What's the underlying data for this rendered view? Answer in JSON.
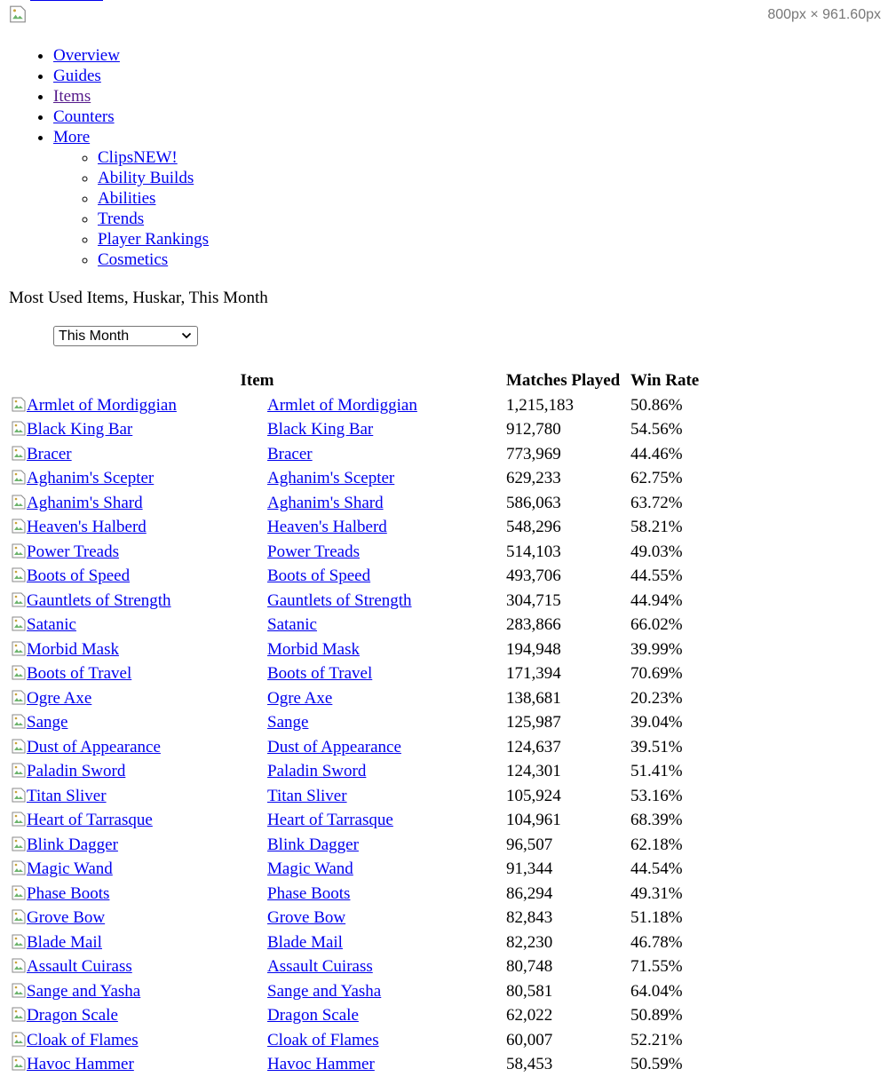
{
  "viewport_dims": "800px × 961.60px",
  "nav": {
    "items": [
      {
        "label": "Overview"
      },
      {
        "label": "Guides"
      },
      {
        "label": "Items"
      },
      {
        "label": "Counters"
      },
      {
        "label": "More"
      }
    ],
    "more_items": [
      {
        "label": "ClipsNEW!"
      },
      {
        "label": "Ability Builds"
      },
      {
        "label": "Abilities"
      },
      {
        "label": "Trends"
      },
      {
        "label": "Player Rankings"
      },
      {
        "label": "Cosmetics"
      }
    ]
  },
  "heading": "Most Used Items, Huskar, This Month",
  "period_select": {
    "value": "This Month"
  },
  "table": {
    "headers": {
      "item": "Item",
      "matches": "Matches Played",
      "winrate": "Win Rate"
    },
    "rows": [
      {
        "name": "Armlet of Mordiggian",
        "matches": "1,215,183",
        "winrate": "50.86%"
      },
      {
        "name": "Black King Bar",
        "matches": "912,780",
        "winrate": "54.56%"
      },
      {
        "name": "Bracer",
        "matches": "773,969",
        "winrate": "44.46%"
      },
      {
        "name": "Aghanim's Scepter",
        "matches": "629,233",
        "winrate": "62.75%"
      },
      {
        "name": "Aghanim's Shard",
        "matches": "586,063",
        "winrate": "63.72%"
      },
      {
        "name": "Heaven's Halberd",
        "matches": "548,296",
        "winrate": "58.21%"
      },
      {
        "name": "Power Treads",
        "matches": "514,103",
        "winrate": "49.03%"
      },
      {
        "name": "Boots of Speed",
        "matches": "493,706",
        "winrate": "44.55%"
      },
      {
        "name": "Gauntlets of Strength",
        "matches": "304,715",
        "winrate": "44.94%"
      },
      {
        "name": "Satanic",
        "matches": "283,866",
        "winrate": "66.02%"
      },
      {
        "name": "Morbid Mask",
        "matches": "194,948",
        "winrate": "39.99%"
      },
      {
        "name": "Boots of Travel",
        "matches": "171,394",
        "winrate": "70.69%"
      },
      {
        "name": "Ogre Axe",
        "matches": "138,681",
        "winrate": "20.23%"
      },
      {
        "name": "Sange",
        "matches": "125,987",
        "winrate": "39.04%"
      },
      {
        "name": "Dust of Appearance",
        "matches": "124,637",
        "winrate": "39.51%"
      },
      {
        "name": "Paladin Sword",
        "matches": "124,301",
        "winrate": "51.41%"
      },
      {
        "name": "Titan Sliver",
        "matches": "105,924",
        "winrate": "53.16%"
      },
      {
        "name": "Heart of Tarrasque",
        "matches": "104,961",
        "winrate": "68.39%"
      },
      {
        "name": "Blink Dagger",
        "matches": "96,507",
        "winrate": "62.18%"
      },
      {
        "name": "Magic Wand",
        "matches": "91,344",
        "winrate": "44.54%"
      },
      {
        "name": "Phase Boots",
        "matches": "86,294",
        "winrate": "49.31%"
      },
      {
        "name": "Grove Bow",
        "matches": "82,843",
        "winrate": "51.18%"
      },
      {
        "name": "Blade Mail",
        "matches": "82,230",
        "winrate": "46.78%"
      },
      {
        "name": "Assault Cuirass",
        "matches": "80,748",
        "winrate": "71.55%"
      },
      {
        "name": "Sange and Yasha",
        "matches": "80,581",
        "winrate": "64.04%"
      },
      {
        "name": "Dragon Scale",
        "matches": "62,022",
        "winrate": "50.89%"
      },
      {
        "name": "Cloak of Flames",
        "matches": "60,007",
        "winrate": "52.21%"
      },
      {
        "name": "Havoc Hammer",
        "matches": "58,453",
        "winrate": "50.59%"
      }
    ]
  },
  "icons": {
    "broken_image": "broken-image-icon",
    "select_chevron": "chevron-down-icon"
  },
  "colors": {
    "link": "#0000ee",
    "visited_link": "#551a8b",
    "dims_text": "#777777"
  }
}
